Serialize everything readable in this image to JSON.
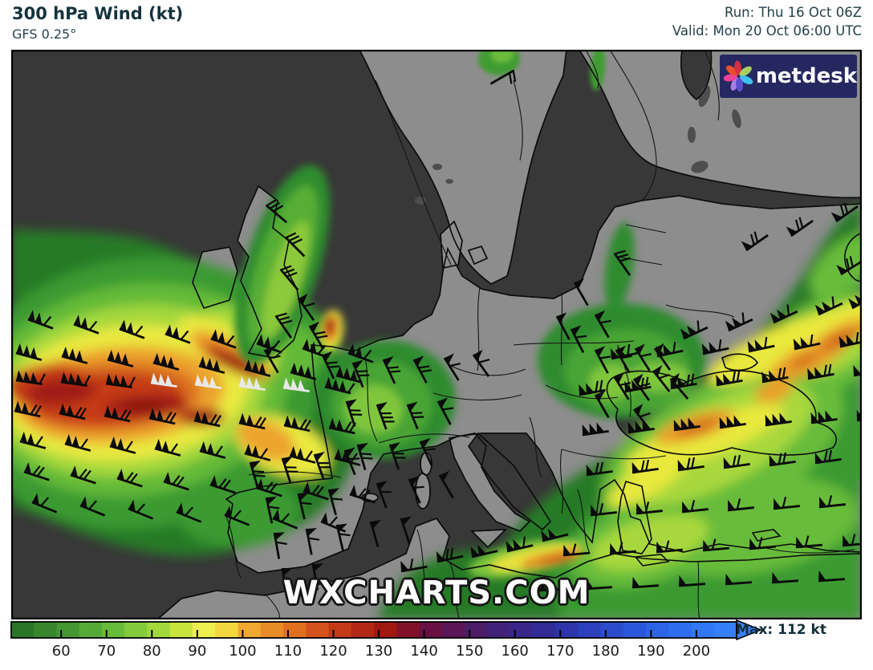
{
  "header": {
    "title": "300 hPa Wind (kt)",
    "subtitle": "GFS 0.25°",
    "run": "Run: Thu 16 Oct 06Z",
    "valid": "Valid: Mon 20 Oct 06:00 UTC"
  },
  "logo": {
    "text": "metdesk",
    "bg": "#252860",
    "petal_colors": [
      "#a97fe2",
      "#ec3f96",
      "#e8502e",
      "#d22f45",
      "#a8cf5f",
      "#3cc0ee",
      "#5a50cf"
    ]
  },
  "watermark": "WXCHARTS.COM",
  "colorbar": {
    "unit": "kt",
    "tick_labels": [
      60,
      70,
      80,
      90,
      100,
      110,
      120,
      130,
      140,
      150,
      160,
      170,
      180,
      190,
      200
    ],
    "segment_kt_start": 50,
    "segment_kt_step": 5,
    "segments": [
      "#2a7526",
      "#38862c",
      "#449733",
      "#55ab36",
      "#68bc39",
      "#84cb3b",
      "#a2d83c",
      "#c8e43c",
      "#eeee4e",
      "#f2d83e",
      "#f0a830",
      "#e88c28",
      "#e07020",
      "#d4521b",
      "#c43a16",
      "#b22813",
      "#a01810",
      "#82122a",
      "#6a1042",
      "#5a1656",
      "#4c1c66",
      "#422278",
      "#382689",
      "#322c96",
      "#2e35ab",
      "#2c3fbc",
      "#2b4ccd",
      "#2b58da",
      "#2c64e6",
      "#2e6eef",
      "#3078f5",
      "#3580fa"
    ],
    "arrow_color": "#3a80fb",
    "max_label": "Max: 112 kt"
  },
  "map_colors": {
    "sea": "#383838",
    "land": "#8d8d8d",
    "coast": "#0c0c0c"
  },
  "chart_data": {
    "type": "heatmap",
    "title": "300 hPa Wind (kt)",
    "model": "GFS 0.25°",
    "run": "Thu 16 Oct 06Z",
    "valid": "Mon 20 Oct 06:00 UTC",
    "units": "kt",
    "region": "Europe / North Atlantic",
    "scale": {
      "min": 50,
      "max": 200,
      "step": 10
    },
    "max_wind_kt": 112,
    "legend_position": "bottom",
    "features": [
      "Strong Atlantic jet streak (core 100-120 kt, dark red) west of Iberia extending toward France",
      "Small 100+ kt maximum over the English Channel",
      "Green 50-80 kt band across UK from Scotland to the Channel",
      "Second jet (80-115 kt) from the Balkans across the Black Sea exiting the NE map corner",
      "80-105 kt streak along the Libyan coast of North Africa",
      "Moderate 50-70 kt winds over eastern/central Europe, Greece and Turkey"
    ],
    "wind_barbs": {
      "rows": [
        [
          35,
          398,
          57,
          6,
          8,
          20,
          2,
          1
        ],
        [
          20,
          440,
          57,
          4,
          8,
          15,
          3,
          0
        ],
        [
          20,
          474,
          56,
          2,
          3,
          8,
          3,
          1
        ],
        [
          188,
          477,
          55,
          2,
          4,
          8,
          3,
          0,
          "#e8e8e8"
        ],
        [
          405,
          482,
          55,
          3,
          1,
          14,
          3,
          1
        ],
        [
          18,
          512,
          56,
          3,
          8,
          12,
          2,
          2
        ],
        [
          25,
          550,
          56,
          3,
          8,
          15,
          2,
          1
        ],
        [
          30,
          588,
          58,
          4,
          8,
          18,
          1,
          2
        ],
        [
          40,
          626,
          60,
          4,
          7,
          22,
          1,
          1
        ],
        [
          930,
          312,
          56,
          -18,
          3,
          -35,
          1,
          2
        ],
        [
          852,
          422,
          56,
          -10,
          4,
          -25,
          2,
          1
        ],
        [
          762,
          447,
          57,
          -3,
          6,
          -12,
          2,
          1
        ],
        [
          722,
          492,
          57,
          -4,
          7,
          -10,
          2,
          2
        ],
        [
          726,
          542,
          57,
          -3,
          7,
          -8,
          3,
          0
        ],
        [
          731,
          592,
          57,
          -3,
          7,
          -8,
          1,
          2
        ],
        [
          736,
          642,
          57,
          -2,
          7,
          -6,
          1,
          1
        ],
        [
          702,
          692,
          58,
          -2,
          7,
          -5,
          1,
          1
        ],
        [
          672,
          736,
          58,
          -2,
          7,
          -4,
          1,
          0
        ]
      ],
      "singles": [
        [
          640,
          88,
          150,
          0,
          2
        ],
        [
          332,
          256,
          40,
          0,
          3
        ],
        [
          356,
          296,
          45,
          0,
          3
        ],
        [
          350,
          336,
          50,
          0,
          3
        ],
        [
          372,
          372,
          55,
          1,
          1
        ],
        [
          344,
          394,
          55,
          0,
          3
        ],
        [
          386,
          406,
          60,
          1,
          2
        ],
        [
          330,
          436,
          60,
          1,
          1
        ],
        [
          402,
          442,
          65,
          1,
          2
        ],
        [
          440,
          452,
          68,
          1,
          2
        ],
        [
          478,
          448,
          65,
          1,
          2
        ],
        [
          516,
          448,
          62,
          1,
          2
        ],
        [
          554,
          446,
          58,
          1,
          1
        ],
        [
          590,
          442,
          55,
          1,
          1
        ],
        [
          432,
          500,
          72,
          1,
          2
        ],
        [
          470,
          504,
          70,
          1,
          3
        ],
        [
          508,
          504,
          68,
          1,
          2
        ],
        [
          546,
          500,
          62,
          1,
          1
        ],
        [
          446,
          554,
          74,
          1,
          2
        ],
        [
          486,
          554,
          71,
          1,
          2
        ],
        [
          524,
          550,
          65,
          1,
          1
        ],
        [
          470,
          602,
          70,
          1,
          1
        ],
        [
          510,
          597,
          66,
          1,
          1
        ],
        [
          548,
          592,
          60,
          1,
          0
        ],
        [
          462,
          650,
          74,
          1,
          0
        ],
        [
          500,
          646,
          72,
          1,
          0
        ],
        [
          312,
          576,
          74,
          1,
          2
        ],
        [
          352,
          571,
          72,
          1,
          2
        ],
        [
          392,
          566,
          70,
          1,
          2
        ],
        [
          430,
          561,
          68,
          1,
          1
        ],
        [
          332,
          620,
          78,
          1,
          1
        ],
        [
          372,
          615,
          77,
          1,
          1
        ],
        [
          410,
          610,
          75,
          1,
          1
        ],
        [
          342,
          664,
          80,
          1,
          1
        ],
        [
          382,
          659,
          79,
          1,
          1
        ],
        [
          420,
          654,
          77,
          1,
          1
        ],
        [
          352,
          708,
          82,
          1,
          0
        ],
        [
          390,
          703,
          80,
          1,
          0
        ],
        [
          716,
          352,
          60,
          1,
          0
        ],
        [
          766,
          316,
          55,
          0,
          3
        ],
        [
          742,
          392,
          60,
          1,
          1
        ],
        [
          694,
          394,
          62,
          1,
          0
        ],
        [
          712,
          410,
          63,
          1,
          1
        ],
        [
          742,
          436,
          62,
          1,
          1
        ],
        [
          768,
          436,
          60,
          1,
          1
        ],
        [
          792,
          434,
          58,
          1,
          1
        ],
        [
          816,
          434,
          55,
          1,
          1
        ],
        [
          766,
          470,
          58,
          1,
          1
        ],
        [
          790,
          472,
          55,
          1,
          1
        ],
        [
          742,
          492,
          60,
          1,
          0
        ],
        [
          814,
          462,
          52,
          1,
          1
        ],
        [
          836,
          472,
          50,
          1,
          1
        ],
        [
          790,
          510,
          52,
          1,
          1
        ],
        [
          545,
          700,
          -12,
          1,
          2
        ],
        [
          588,
          694,
          -13,
          2,
          0
        ],
        [
          632,
          687,
          -13,
          2,
          1
        ],
        [
          676,
          674,
          -14,
          2,
          0
        ],
        [
          500,
          712,
          -10,
          1,
          1
        ],
        [
          1062,
          384,
          -28,
          2,
          1
        ],
        [
          1048,
          342,
          -32,
          1,
          2
        ]
      ]
    }
  }
}
